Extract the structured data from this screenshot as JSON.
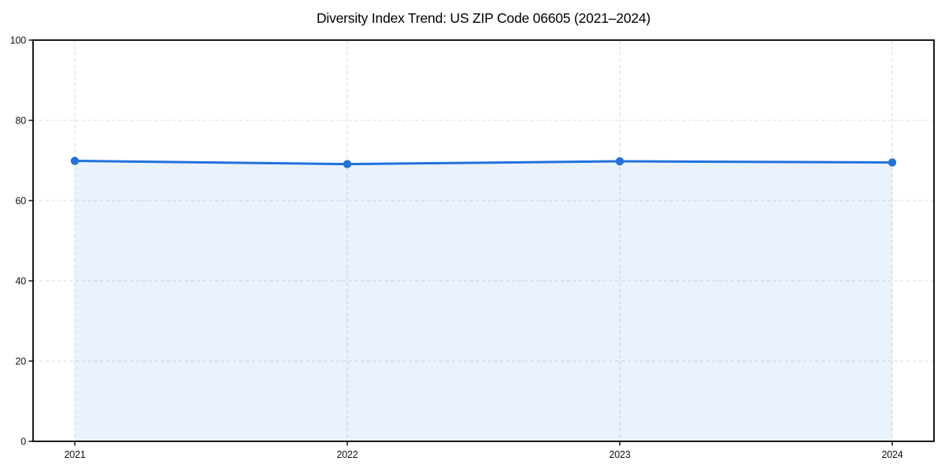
{
  "chart_data": {
    "type": "area",
    "title": "Diversity Index Trend: US ZIP Code 06605 (2021–2024)",
    "categories": [
      "2021",
      "2022",
      "2023",
      "2024"
    ],
    "series": [
      {
        "name": "Diversity Index",
        "values": [
          69.9,
          69.1,
          69.8,
          69.5
        ]
      }
    ],
    "xlabel": "",
    "ylabel": "",
    "ylim": [
      0,
      100
    ],
    "yticks": [
      0,
      20,
      40,
      60,
      80,
      100
    ],
    "grid": "dashed-both",
    "legend": "none",
    "marker": "circle",
    "colors": {
      "line": "#2271dd",
      "marker": "#2271dd",
      "fill": "#2b7ce9",
      "fill_opacity": 0.1,
      "grid": "#dcdcdc",
      "spine": "#000000",
      "tick_label": "#111111",
      "title": "#000000",
      "background": "#ffffff"
    }
  }
}
